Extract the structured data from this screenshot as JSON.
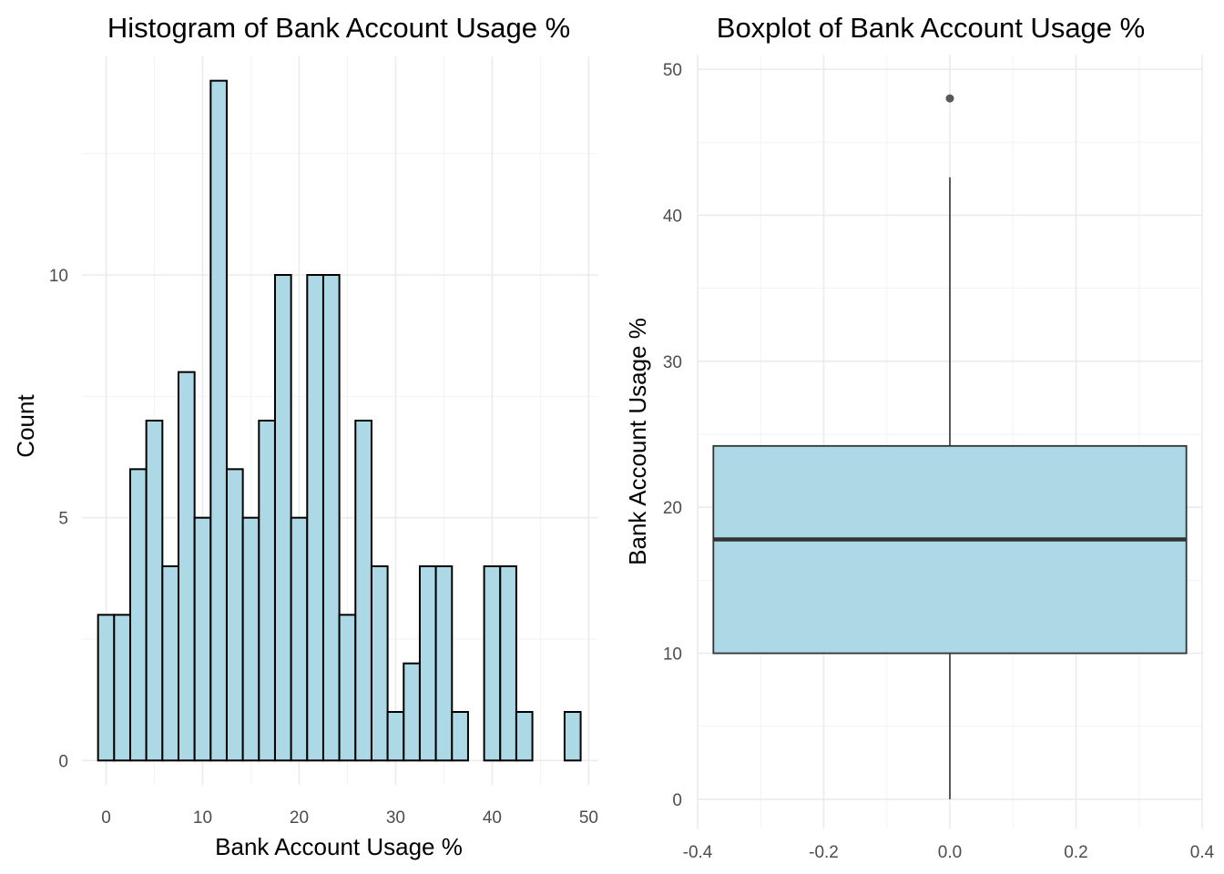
{
  "chart_data": [
    {
      "type": "bar",
      "subtype": "histogram",
      "title": "Histogram of Bank Account Usage %",
      "xlabel": "Bank Account Usage %",
      "ylabel": "Count",
      "bin_width": 1.6667,
      "bin_start": -0.8333,
      "counts": [
        3,
        3,
        6,
        7,
        4,
        8,
        5,
        14,
        6,
        5,
        7,
        10,
        5,
        10,
        10,
        3,
        7,
        4,
        1,
        2,
        4,
        4,
        1,
        0,
        4,
        4,
        1,
        0,
        0,
        1
      ],
      "xlim": [
        -2.5,
        51
      ],
      "ylim": [
        -0.5,
        14.5
      ],
      "x_ticks": [
        0,
        10,
        20,
        30,
        40,
        50
      ],
      "x_tick_labels": [
        "0",
        "10",
        "20",
        "30",
        "40",
        "50"
      ],
      "y_ticks": [
        0,
        5,
        10
      ],
      "y_tick_labels": [
        "0",
        "5",
        "10"
      ],
      "fill_color": "#ADD8E6",
      "edge_color": "#000000",
      "grid": true
    },
    {
      "type": "box",
      "title": "Boxplot of Bank Account Usage %",
      "xlabel": "",
      "ylabel": "Bank Account Usage %",
      "box": {
        "x": 0,
        "lower_whisker": 0,
        "q1": 10,
        "median": 17.8,
        "q3": 24.2,
        "upper_whisker": 42.6,
        "half_width": 0.375
      },
      "outliers": [
        48
      ],
      "xlim": [
        -0.4,
        0.4
      ],
      "ylim": [
        -2,
        51
      ],
      "x_ticks": [
        -0.4,
        -0.2,
        0,
        0.2,
        0.4
      ],
      "x_tick_labels": [
        "-0.4",
        "-0.2",
        "0.0",
        "0.2",
        "0.4"
      ],
      "y_ticks": [
        0,
        10,
        20,
        30,
        40,
        50
      ],
      "y_tick_labels": [
        "0",
        "10",
        "20",
        "30",
        "40",
        "50"
      ],
      "fill_color": "#ADD8E6",
      "edge_color": "#333333",
      "outlier_color": "#595959",
      "grid": true
    }
  ]
}
